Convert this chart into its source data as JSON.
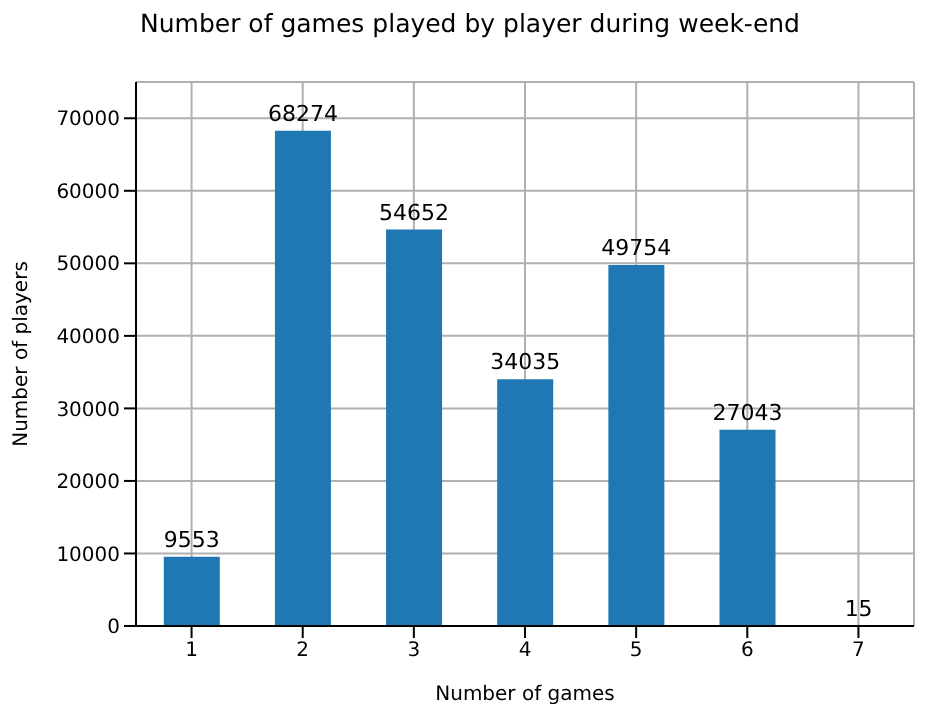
{
  "chart_data": {
    "type": "bar",
    "title": "Number of games played by player during week-end",
    "xlabel": "Number of games",
    "ylabel": "Number of players",
    "categories": [
      "1",
      "2",
      "3",
      "4",
      "5",
      "6",
      "7"
    ],
    "series": [
      {
        "color": "#1f77b4",
        "values": [
          9553,
          68274,
          54652,
          34035,
          49754,
          27043,
          15
        ]
      }
    ],
    "ylim": [
      0,
      75000
    ],
    "yticks": [
      0,
      10000,
      20000,
      30000,
      40000,
      50000,
      60000,
      70000
    ],
    "grid": true,
    "data_labels": true
  }
}
